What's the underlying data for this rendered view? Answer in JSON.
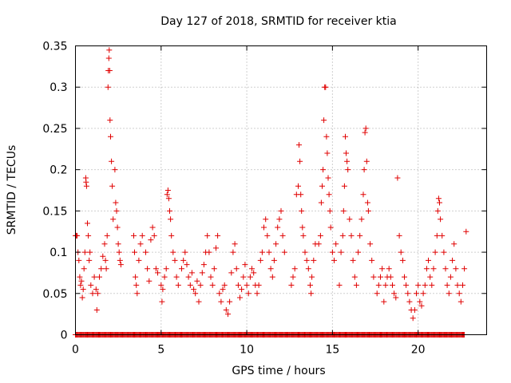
{
  "chart_data": {
    "type": "scatter",
    "title": "Day 127 of 2018, SRMTID for receiver ktia",
    "xlabel": "GPS time / hours",
    "ylabel": "SRMTID / TECUs",
    "xlim": [
      0,
      24
    ],
    "ylim": [
      0,
      0.35
    ],
    "x_ticks": [
      0,
      5,
      10,
      15,
      20
    ],
    "x_tick_labels": [
      "0",
      "5",
      "10",
      "15",
      "20"
    ],
    "y_ticks": [
      0,
      0.05,
      0.1,
      0.15,
      0.2,
      0.25,
      0.3,
      0.35
    ],
    "y_tick_labels": [
      "0",
      "0.05",
      "0.1",
      "0.15",
      "0.2",
      "0.25",
      "0.3",
      "0.35"
    ],
    "grid": true,
    "marker": "plus",
    "series_color": "#e00000",
    "series": [
      {
        "name": "SRMTID",
        "points": [
          [
            0.0,
            0.12
          ],
          [
            0.05,
            0.12
          ],
          [
            0.1,
            0.12
          ],
          [
            0.15,
            0.1
          ],
          [
            0.2,
            0.09
          ],
          [
            0.25,
            0.07
          ],
          [
            0.3,
            0.06
          ],
          [
            0.35,
            0.065
          ],
          [
            0.4,
            0.045
          ],
          [
            0.45,
            0.055
          ],
          [
            0.5,
            0.08
          ],
          [
            0.55,
            0.1
          ],
          [
            0.6,
            0.19
          ],
          [
            0.62,
            0.185
          ],
          [
            0.65,
            0.18
          ],
          [
            0.7,
            0.135
          ],
          [
            0.75,
            0.12
          ],
          [
            0.8,
            0.09
          ],
          [
            0.85,
            0.1
          ],
          [
            0.9,
            0.06
          ],
          [
            1.0,
            0.05
          ],
          [
            1.1,
            0.07
          ],
          [
            1.2,
            0.055
          ],
          [
            1.25,
            0.03
          ],
          [
            1.3,
            0.05
          ],
          [
            1.4,
            0.07
          ],
          [
            1.5,
            0.08
          ],
          [
            1.6,
            0.095
          ],
          [
            1.7,
            0.11
          ],
          [
            1.75,
            0.09
          ],
          [
            1.8,
            0.08
          ],
          [
            1.85,
            0.12
          ],
          [
            1.9,
            0.3
          ],
          [
            1.92,
            0.32
          ],
          [
            1.95,
            0.335
          ],
          [
            1.97,
            0.345
          ],
          [
            2.0,
            0.32
          ],
          [
            2.02,
            0.26
          ],
          [
            2.05,
            0.24
          ],
          [
            2.1,
            0.21
          ],
          [
            2.15,
            0.18
          ],
          [
            2.2,
            0.14
          ],
          [
            2.3,
            0.2
          ],
          [
            2.35,
            0.16
          ],
          [
            2.4,
            0.15
          ],
          [
            2.45,
            0.13
          ],
          [
            2.5,
            0.11
          ],
          [
            2.55,
            0.1
          ],
          [
            2.6,
            0.09
          ],
          [
            2.65,
            0.085
          ],
          [
            3.4,
            0.12
          ],
          [
            3.45,
            0.1
          ],
          [
            3.5,
            0.07
          ],
          [
            3.55,
            0.06
          ],
          [
            3.6,
            0.05
          ],
          [
            3.7,
            0.09
          ],
          [
            3.8,
            0.11
          ],
          [
            3.9,
            0.12
          ],
          [
            4.1,
            0.1
          ],
          [
            4.2,
            0.08
          ],
          [
            4.3,
            0.065
          ],
          [
            4.4,
            0.115
          ],
          [
            4.5,
            0.13
          ],
          [
            4.6,
            0.12
          ],
          [
            4.7,
            0.08
          ],
          [
            4.8,
            0.075
          ],
          [
            5.0,
            0.06
          ],
          [
            5.05,
            0.04
          ],
          [
            5.1,
            0.055
          ],
          [
            5.2,
            0.07
          ],
          [
            5.3,
            0.08
          ],
          [
            5.35,
            0.17
          ],
          [
            5.4,
            0.175
          ],
          [
            5.45,
            0.165
          ],
          [
            5.5,
            0.15
          ],
          [
            5.55,
            0.14
          ],
          [
            5.6,
            0.12
          ],
          [
            5.7,
            0.1
          ],
          [
            5.8,
            0.09
          ],
          [
            5.9,
            0.07
          ],
          [
            6.0,
            0.06
          ],
          [
            6.2,
            0.08
          ],
          [
            6.3,
            0.09
          ],
          [
            6.4,
            0.1
          ],
          [
            6.5,
            0.085
          ],
          [
            6.6,
            0.07
          ],
          [
            6.7,
            0.06
          ],
          [
            6.8,
            0.075
          ],
          [
            6.9,
            0.055
          ],
          [
            7.0,
            0.05
          ],
          [
            7.1,
            0.065
          ],
          [
            7.2,
            0.04
          ],
          [
            7.3,
            0.06
          ],
          [
            7.4,
            0.075
          ],
          [
            7.5,
            0.085
          ],
          [
            7.6,
            0.1
          ],
          [
            7.7,
            0.12
          ],
          [
            7.8,
            0.1
          ],
          [
            7.9,
            0.07
          ],
          [
            8.0,
            0.06
          ],
          [
            8.1,
            0.08
          ],
          [
            8.2,
            0.105
          ],
          [
            8.3,
            0.12
          ],
          [
            8.4,
            0.05
          ],
          [
            8.5,
            0.04
          ],
          [
            8.6,
            0.055
          ],
          [
            8.7,
            0.06
          ],
          [
            8.8,
            0.03
          ],
          [
            8.9,
            0.025
          ],
          [
            9.0,
            0.04
          ],
          [
            9.1,
            0.075
          ],
          [
            9.2,
            0.1
          ],
          [
            9.3,
            0.11
          ],
          [
            9.4,
            0.08
          ],
          [
            9.5,
            0.06
          ],
          [
            9.6,
            0.045
          ],
          [
            9.7,
            0.055
          ],
          [
            9.8,
            0.07
          ],
          [
            9.9,
            0.085
          ],
          [
            10.0,
            0.06
          ],
          [
            10.1,
            0.05
          ],
          [
            10.2,
            0.07
          ],
          [
            10.3,
            0.08
          ],
          [
            10.4,
            0.075
          ],
          [
            10.5,
            0.06
          ],
          [
            10.6,
            0.05
          ],
          [
            10.7,
            0.06
          ],
          [
            10.8,
            0.09
          ],
          [
            10.9,
            0.1
          ],
          [
            11.0,
            0.13
          ],
          [
            11.1,
            0.14
          ],
          [
            11.2,
            0.12
          ],
          [
            11.3,
            0.1
          ],
          [
            11.4,
            0.08
          ],
          [
            11.5,
            0.07
          ],
          [
            11.6,
            0.09
          ],
          [
            11.7,
            0.11
          ],
          [
            11.8,
            0.13
          ],
          [
            11.9,
            0.14
          ],
          [
            12.0,
            0.15
          ],
          [
            12.1,
            0.12
          ],
          [
            12.2,
            0.1
          ],
          [
            12.6,
            0.06
          ],
          [
            12.7,
            0.07
          ],
          [
            12.8,
            0.08
          ],
          [
            12.9,
            0.17
          ],
          [
            13.0,
            0.18
          ],
          [
            13.05,
            0.23
          ],
          [
            13.1,
            0.21
          ],
          [
            13.15,
            0.17
          ],
          [
            13.2,
            0.15
          ],
          [
            13.25,
            0.13
          ],
          [
            13.3,
            0.12
          ],
          [
            13.4,
            0.1
          ],
          [
            13.5,
            0.09
          ],
          [
            13.6,
            0.08
          ],
          [
            13.7,
            0.06
          ],
          [
            13.75,
            0.05
          ],
          [
            13.8,
            0.07
          ],
          [
            13.9,
            0.09
          ],
          [
            14.0,
            0.11
          ],
          [
            14.2,
            0.11
          ],
          [
            14.3,
            0.12
          ],
          [
            14.35,
            0.16
          ],
          [
            14.4,
            0.18
          ],
          [
            14.45,
            0.2
          ],
          [
            14.5,
            0.26
          ],
          [
            14.55,
            0.3
          ],
          [
            14.6,
            0.3
          ],
          [
            14.65,
            0.24
          ],
          [
            14.7,
            0.22
          ],
          [
            14.75,
            0.19
          ],
          [
            14.8,
            0.17
          ],
          [
            14.85,
            0.15
          ],
          [
            14.9,
            0.13
          ],
          [
            15.0,
            0.1
          ],
          [
            15.1,
            0.09
          ],
          [
            15.2,
            0.11
          ],
          [
            15.4,
            0.06
          ],
          [
            15.5,
            0.1
          ],
          [
            15.6,
            0.12
          ],
          [
            15.65,
            0.15
          ],
          [
            15.7,
            0.18
          ],
          [
            15.75,
            0.24
          ],
          [
            15.8,
            0.22
          ],
          [
            15.85,
            0.21
          ],
          [
            15.9,
            0.2
          ],
          [
            16.0,
            0.14
          ],
          [
            16.1,
            0.12
          ],
          [
            16.2,
            0.09
          ],
          [
            16.3,
            0.07
          ],
          [
            16.4,
            0.06
          ],
          [
            16.5,
            0.1
          ],
          [
            16.6,
            0.12
          ],
          [
            16.7,
            0.14
          ],
          [
            16.8,
            0.17
          ],
          [
            16.85,
            0.2
          ],
          [
            16.9,
            0.245
          ],
          [
            16.95,
            0.25
          ],
          [
            17.0,
            0.21
          ],
          [
            17.05,
            0.16
          ],
          [
            17.1,
            0.15
          ],
          [
            17.2,
            0.11
          ],
          [
            17.3,
            0.09
          ],
          [
            17.4,
            0.07
          ],
          [
            17.6,
            0.05
          ],
          [
            17.7,
            0.06
          ],
          [
            17.8,
            0.07
          ],
          [
            17.9,
            0.08
          ],
          [
            18.0,
            0.04
          ],
          [
            18.1,
            0.06
          ],
          [
            18.2,
            0.07
          ],
          [
            18.3,
            0.08
          ],
          [
            18.4,
            0.07
          ],
          [
            18.5,
            0.06
          ],
          [
            18.6,
            0.05
          ],
          [
            18.7,
            0.045
          ],
          [
            18.8,
            0.19
          ],
          [
            18.9,
            0.12
          ],
          [
            19.0,
            0.1
          ],
          [
            19.1,
            0.09
          ],
          [
            19.2,
            0.07
          ],
          [
            19.3,
            0.06
          ],
          [
            19.4,
            0.05
          ],
          [
            19.5,
            0.04
          ],
          [
            19.6,
            0.03
          ],
          [
            19.7,
            0.02
          ],
          [
            19.8,
            0.03
          ],
          [
            19.9,
            0.05
          ],
          [
            20.0,
            0.06
          ],
          [
            20.1,
            0.04
          ],
          [
            20.2,
            0.035
          ],
          [
            20.3,
            0.05
          ],
          [
            20.4,
            0.06
          ],
          [
            20.5,
            0.08
          ],
          [
            20.6,
            0.09
          ],
          [
            20.7,
            0.07
          ],
          [
            20.8,
            0.06
          ],
          [
            20.9,
            0.08
          ],
          [
            21.0,
            0.1
          ],
          [
            21.1,
            0.12
          ],
          [
            21.15,
            0.15
          ],
          [
            21.2,
            0.165
          ],
          [
            21.25,
            0.16
          ],
          [
            21.3,
            0.14
          ],
          [
            21.4,
            0.12
          ],
          [
            21.5,
            0.1
          ],
          [
            21.6,
            0.08
          ],
          [
            21.7,
            0.06
          ],
          [
            21.8,
            0.05
          ],
          [
            21.9,
            0.07
          ],
          [
            22.0,
            0.09
          ],
          [
            22.1,
            0.11
          ],
          [
            22.2,
            0.08
          ],
          [
            22.3,
            0.06
          ],
          [
            22.4,
            0.05
          ],
          [
            22.5,
            0.04
          ],
          [
            22.6,
            0.06
          ],
          [
            22.7,
            0.08
          ],
          [
            22.8,
            0.125
          ]
        ],
        "zero_ranges": [
          [
            0.0,
            22.7
          ]
        ]
      }
    ]
  }
}
